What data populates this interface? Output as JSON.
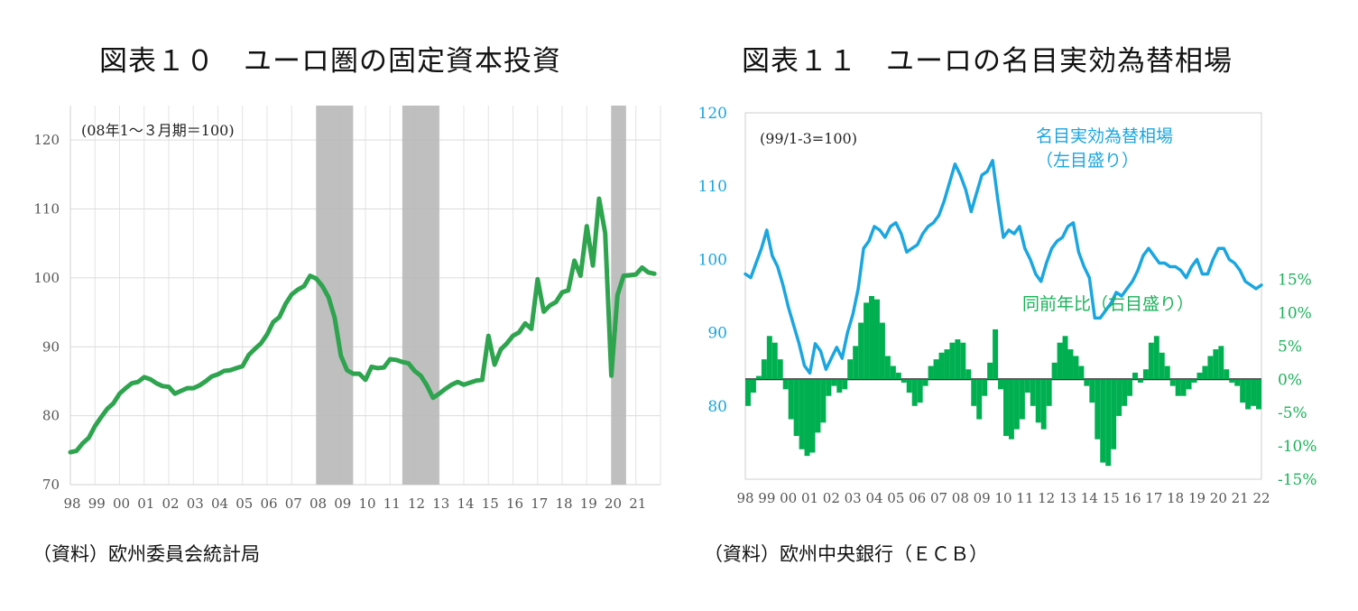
{
  "charts": [
    {
      "title": "図表１０　ユーロ圏の固定資本投資",
      "source": "（資料）欧州委員会統計局"
    },
    {
      "title": "図表１１　ユーロの名目実効為替相場",
      "source": "（資料）欧州中央銀行（ＥＣＢ）"
    }
  ],
  "chart_data": [
    {
      "type": "line",
      "title": "図表１０　ユーロ圏の固定資本投資",
      "note": "(08年1～３月期＝100)",
      "ylim": [
        70,
        125
      ],
      "yticks": [
        70,
        80,
        90,
        100,
        110,
        120
      ],
      "xlim": [
        1998,
        2022
      ],
      "xtick_labels": [
        "98",
        "99",
        "00",
        "01",
        "02",
        "03",
        "04",
        "05",
        "06",
        "07",
        "08",
        "09",
        "10",
        "11",
        "12",
        "13",
        "14",
        "15",
        "16",
        "17",
        "18",
        "19",
        "20",
        "21"
      ],
      "grid": true,
      "shaded_periods": [
        [
          2008.0,
          2009.5
        ],
        [
          2011.5,
          2013.0
        ],
        [
          2020.0,
          2020.6
        ]
      ],
      "series": [
        {
          "color": "#2ea44f",
          "x": [
            1998.0,
            1998.25,
            1998.5,
            1998.75,
            1999.0,
            1999.25,
            1999.5,
            1999.75,
            2000.0,
            2000.25,
            2000.5,
            2000.75,
            2001.0,
            2001.25,
            2001.5,
            2001.75,
            2002.0,
            2002.25,
            2002.5,
            2002.75,
            2003.0,
            2003.25,
            2003.5,
            2003.75,
            2004.0,
            2004.25,
            2004.5,
            2004.75,
            2005.0,
            2005.25,
            2005.5,
            2005.75,
            2006.0,
            2006.25,
            2006.5,
            2006.75,
            2007.0,
            2007.25,
            2007.5,
            2007.75,
            2008.0,
            2008.25,
            2008.5,
            2008.75,
            2009.0,
            2009.25,
            2009.5,
            2009.75,
            2010.0,
            2010.25,
            2010.5,
            2010.75,
            2011.0,
            2011.25,
            2011.5,
            2011.75,
            2012.0,
            2012.25,
            2012.5,
            2012.75,
            2013.0,
            2013.25,
            2013.5,
            2013.75,
            2014.0,
            2014.25,
            2014.5,
            2014.75,
            2015.0,
            2015.25,
            2015.5,
            2015.75,
            2016.0,
            2016.25,
            2016.5,
            2016.75,
            2017.0,
            2017.25,
            2017.5,
            2017.75,
            2018.0,
            2018.25,
            2018.5,
            2018.75,
            2019.0,
            2019.25,
            2019.5,
            2019.75,
            2020.0,
            2020.25,
            2020.5,
            2020.75,
            2021.0,
            2021.25,
            2021.5,
            2021.75
          ],
          "y": [
            74.7,
            74.9,
            76.0,
            76.8,
            78.5,
            79.8,
            81.0,
            81.8,
            83.2,
            84.0,
            84.7,
            84.9,
            85.6,
            85.3,
            84.7,
            84.3,
            84.2,
            83.2,
            83.6,
            84.0,
            84.0,
            84.4,
            85.0,
            85.7,
            86.0,
            86.5,
            86.6,
            86.9,
            87.2,
            88.8,
            89.7,
            90.5,
            91.8,
            93.6,
            94.3,
            96.2,
            97.6,
            98.3,
            98.8,
            100.3,
            99.9,
            98.8,
            97.2,
            94.2,
            88.7,
            86.6,
            86.1,
            86.1,
            85.2,
            87.1,
            86.9,
            87.0,
            88.2,
            88.1,
            87.8,
            87.6,
            86.5,
            85.8,
            84.4,
            82.6,
            83.2,
            83.9,
            84.5,
            84.9,
            84.5,
            84.8,
            85.1,
            85.2,
            91.6,
            87.4,
            89.6,
            90.5,
            91.6,
            92.1,
            93.4,
            92.6,
            99.8,
            95.1,
            96.0,
            96.5,
            97.9,
            98.2,
            102.5,
            100.3,
            107.5,
            101.8,
            111.5,
            106.5,
            85.8,
            97.5,
            100.3,
            100.4,
            100.5,
            101.5,
            100.8,
            100.6
          ]
        }
      ]
    },
    {
      "type": "line+bar",
      "title": "図表１１　ユーロの名目実効為替相場",
      "note": "(99/1-3=100)",
      "xlim": [
        1998,
        2022
      ],
      "xtick_labels": [
        "98",
        "99",
        "00",
        "01",
        "02",
        "03",
        "04",
        "05",
        "06",
        "07",
        "08",
        "09",
        "10",
        "11",
        "12",
        "13",
        "14",
        "15",
        "16",
        "17",
        "18",
        "19",
        "20",
        "21",
        "22"
      ],
      "y_left": {
        "ylim": [
          70,
          120
        ],
        "yticks": [
          80,
          90,
          100,
          110,
          120
        ]
      },
      "y_right": {
        "ylim": [
          -15,
          40
        ],
        "yticks": [
          -15,
          -10,
          -5,
          0,
          5,
          10,
          15
        ],
        "tick_format": "%"
      },
      "grid": true,
      "series": [
        {
          "name": "名目実効為替相場\n（左目盛り）",
          "axis": "left",
          "type": "line",
          "color": "#1aa6e0",
          "x": [
            1998.0,
            1998.25,
            1998.5,
            1998.75,
            1999.0,
            1999.25,
            1999.5,
            1999.75,
            2000.0,
            2000.25,
            2000.5,
            2000.75,
            2001.0,
            2001.25,
            2001.5,
            2001.75,
            2002.0,
            2002.25,
            2002.5,
            2002.75,
            2003.0,
            2003.25,
            2003.5,
            2003.75,
            2004.0,
            2004.25,
            2004.5,
            2004.75,
            2005.0,
            2005.25,
            2005.5,
            2005.75,
            2006.0,
            2006.25,
            2006.5,
            2006.75,
            2007.0,
            2007.25,
            2007.5,
            2007.75,
            2008.0,
            2008.25,
            2008.5,
            2008.75,
            2009.0,
            2009.25,
            2009.5,
            2009.75,
            2010.0,
            2010.25,
            2010.5,
            2010.75,
            2011.0,
            2011.25,
            2011.5,
            2011.75,
            2012.0,
            2012.25,
            2012.5,
            2012.75,
            2013.0,
            2013.25,
            2013.5,
            2013.75,
            2014.0,
            2014.25,
            2014.5,
            2014.75,
            2015.0,
            2015.25,
            2015.5,
            2015.75,
            2016.0,
            2016.25,
            2016.5,
            2016.75,
            2017.0,
            2017.25,
            2017.5,
            2017.75,
            2018.0,
            2018.25,
            2018.5,
            2018.75,
            2019.0,
            2019.25,
            2019.5,
            2019.75,
            2020.0,
            2020.25,
            2020.5,
            2020.75,
            2021.0,
            2021.25,
            2021.5,
            2021.75,
            2022.0
          ],
          "y": [
            98.0,
            97.5,
            99.5,
            101.5,
            104.0,
            100.5,
            99.0,
            96.5,
            93.5,
            91.0,
            88.5,
            85.5,
            84.5,
            88.5,
            87.5,
            85.0,
            86.5,
            88.0,
            86.5,
            90.0,
            92.5,
            96.0,
            101.5,
            102.5,
            104.5,
            104.0,
            103.0,
            104.5,
            105.0,
            103.5,
            101.0,
            101.5,
            102.0,
            103.5,
            104.5,
            105.0,
            106.0,
            108.0,
            110.5,
            113.0,
            111.5,
            109.5,
            106.5,
            109.0,
            111.5,
            112.0,
            113.5,
            108.0,
            103.0,
            104.0,
            103.5,
            104.5,
            101.5,
            100.0,
            98.0,
            97.0,
            99.5,
            101.5,
            102.5,
            103.0,
            104.5,
            105.0,
            101.0,
            99.0,
            97.5,
            92.0,
            92.0,
            93.0,
            94.0,
            95.5,
            95.0,
            96.0,
            97.0,
            98.5,
            100.5,
            101.5,
            100.5,
            99.5,
            99.5,
            99.0,
            99.0,
            98.5,
            97.5,
            99.0,
            100.0,
            98.0,
            98.0,
            100.0,
            101.5,
            101.5,
            100.0,
            99.5,
            98.5,
            97.0,
            96.5,
            96.0,
            96.5
          ]
        },
        {
          "name": "同前年比（右目盛り）",
          "axis": "right",
          "type": "bar",
          "color": "#00b050",
          "x": [
            1998.0,
            1998.25,
            1998.5,
            1998.75,
            1999.0,
            1999.25,
            1999.5,
            1999.75,
            2000.0,
            2000.25,
            2000.5,
            2000.75,
            2001.0,
            2001.25,
            2001.5,
            2001.75,
            2002.0,
            2002.25,
            2002.5,
            2002.75,
            2003.0,
            2003.25,
            2003.5,
            2003.75,
            2004.0,
            2004.25,
            2004.5,
            2004.75,
            2005.0,
            2005.25,
            2005.5,
            2005.75,
            2006.0,
            2006.25,
            2006.5,
            2006.75,
            2007.0,
            2007.25,
            2007.5,
            2007.75,
            2008.0,
            2008.25,
            2008.5,
            2008.75,
            2009.0,
            2009.25,
            2009.5,
            2009.75,
            2010.0,
            2010.25,
            2010.5,
            2010.75,
            2011.0,
            2011.25,
            2011.5,
            2011.75,
            2012.0,
            2012.25,
            2012.5,
            2012.75,
            2013.0,
            2013.25,
            2013.5,
            2013.75,
            2014.0,
            2014.25,
            2014.5,
            2014.75,
            2015.0,
            2015.25,
            2015.5,
            2015.75,
            2016.0,
            2016.25,
            2016.5,
            2016.75,
            2017.0,
            2017.25,
            2017.5,
            2017.75,
            2018.0,
            2018.25,
            2018.5,
            2018.75,
            2019.0,
            2019.25,
            2019.5,
            2019.75,
            2020.0,
            2020.25,
            2020.5,
            2020.75,
            2021.0,
            2021.25,
            2021.5,
            2021.75
          ],
          "y": [
            -4.0,
            -2.0,
            0.5,
            3.0,
            6.5,
            5.5,
            3.0,
            -1.5,
            -6.0,
            -8.5,
            -10.5,
            -11.5,
            -11.0,
            -8.0,
            -6.5,
            -2.5,
            -1.0,
            -2.0,
            -1.5,
            3.0,
            5.0,
            8.5,
            11.5,
            12.5,
            12.0,
            8.5,
            3.5,
            2.0,
            1.0,
            -0.5,
            -2.0,
            -4.0,
            -3.5,
            -1.0,
            2.0,
            3.0,
            4.0,
            4.5,
            5.5,
            6.0,
            5.5,
            1.5,
            -4.0,
            -6.0,
            -2.5,
            2.5,
            7.5,
            -1.5,
            -8.5,
            -9.0,
            -7.5,
            -6.0,
            -2.0,
            -4.0,
            -6.5,
            -7.5,
            -4.0,
            2.5,
            5.5,
            6.5,
            4.5,
            3.5,
            2.0,
            -1.0,
            -3.5,
            -9.0,
            -12.5,
            -13.0,
            -10.5,
            -5.5,
            -4.0,
            -2.5,
            1.0,
            -0.5,
            1.5,
            5.5,
            6.5,
            4.0,
            2.0,
            -1.0,
            -2.5,
            -2.5,
            -1.5,
            -0.5,
            1.0,
            2.0,
            3.5,
            4.5,
            5.0,
            1.5,
            -0.5,
            -1.0,
            -3.5,
            -4.5,
            -4.0,
            -4.5
          ]
        }
      ]
    }
  ]
}
